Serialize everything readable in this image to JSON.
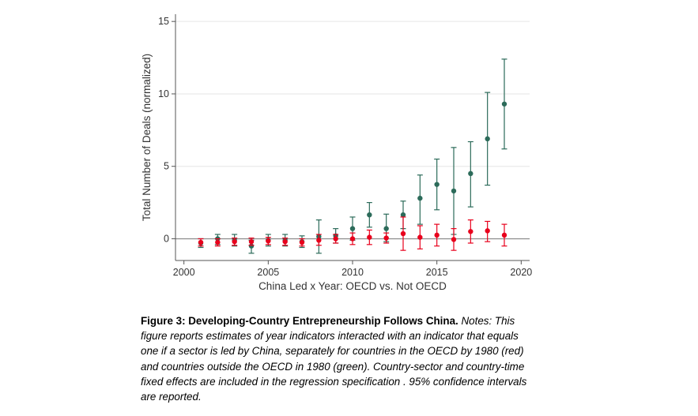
{
  "chart_data": {
    "type": "scatter",
    "xlabel": "China Led x Year: OECD vs. Not OECD",
    "ylabel": "Total Number of Deals (normalized)",
    "xlim": [
      1999.5,
      2020.5
    ],
    "ylim": [
      -1.5,
      15.5
    ],
    "xticks": [
      2000,
      2005,
      2010,
      2015,
      2020
    ],
    "yticks": [
      0,
      5,
      10,
      15
    ],
    "grid": "horizontal",
    "series": [
      {
        "color": "#2c6b5a",
        "x": [
          2001,
          2002,
          2003,
          2004,
          2005,
          2006,
          2007,
          2008,
          2009,
          2010,
          2011,
          2012,
          2013,
          2014,
          2015,
          2016,
          2017,
          2018,
          2019
        ],
        "y": [
          -0.3,
          0.0,
          -0.1,
          -0.5,
          -0.1,
          -0.1,
          -0.2,
          0.15,
          0.2,
          0.7,
          1.65,
          0.7,
          1.65,
          2.8,
          3.75,
          3.3,
          4.5,
          6.9,
          9.3
        ],
        "lower": [
          -0.6,
          -0.4,
          -0.5,
          -1.0,
          -0.5,
          -0.5,
          -0.6,
          -1.0,
          -0.3,
          -0.1,
          0.8,
          -0.2,
          0.7,
          1.0,
          2.0,
          0.3,
          2.2,
          3.7,
          6.2
        ],
        "upper": [
          0.0,
          0.3,
          0.3,
          -0.1,
          0.3,
          0.3,
          0.2,
          1.3,
          0.7,
          1.5,
          2.5,
          1.7,
          2.6,
          4.4,
          5.5,
          6.3,
          6.7,
          10.1,
          12.4
        ]
      },
      {
        "color": "#e8001c",
        "x": [
          2001,
          2002,
          2003,
          2004,
          2005,
          2006,
          2007,
          2008,
          2009,
          2010,
          2011,
          2012,
          2013,
          2014,
          2015,
          2016,
          2017,
          2018,
          2019
        ],
        "y": [
          -0.25,
          -0.25,
          -0.2,
          -0.2,
          -0.15,
          -0.2,
          -0.25,
          -0.1,
          0.0,
          0.0,
          0.1,
          0.05,
          0.35,
          0.1,
          0.25,
          -0.05,
          0.5,
          0.55,
          0.25
        ],
        "lower": [
          -0.5,
          -0.5,
          -0.45,
          -0.45,
          -0.4,
          -0.45,
          -0.5,
          -0.45,
          -0.3,
          -0.4,
          -0.4,
          -0.3,
          -0.8,
          -0.7,
          -0.5,
          -0.8,
          -0.3,
          -0.2,
          -0.5
        ],
        "upper": [
          0.0,
          0.0,
          0.05,
          0.05,
          0.1,
          0.05,
          0.0,
          0.3,
          0.3,
          0.4,
          0.6,
          0.4,
          1.5,
          0.9,
          1.0,
          0.7,
          1.3,
          1.2,
          1.0
        ]
      }
    ]
  },
  "caption": {
    "title": "Figure 3: Developing-Country Entrepreneurship Follows China.",
    "notes": "Notes: This figure reports estimates of year indicators interacted with an indicator that equals one if a sector is led by China, separately for countries in the OECD by 1980 (red) and countries outside the OECD in 1980 (green). Country-sector and country-time fixed effects are included in the regression specification . 95% confidence intervals are reported."
  }
}
